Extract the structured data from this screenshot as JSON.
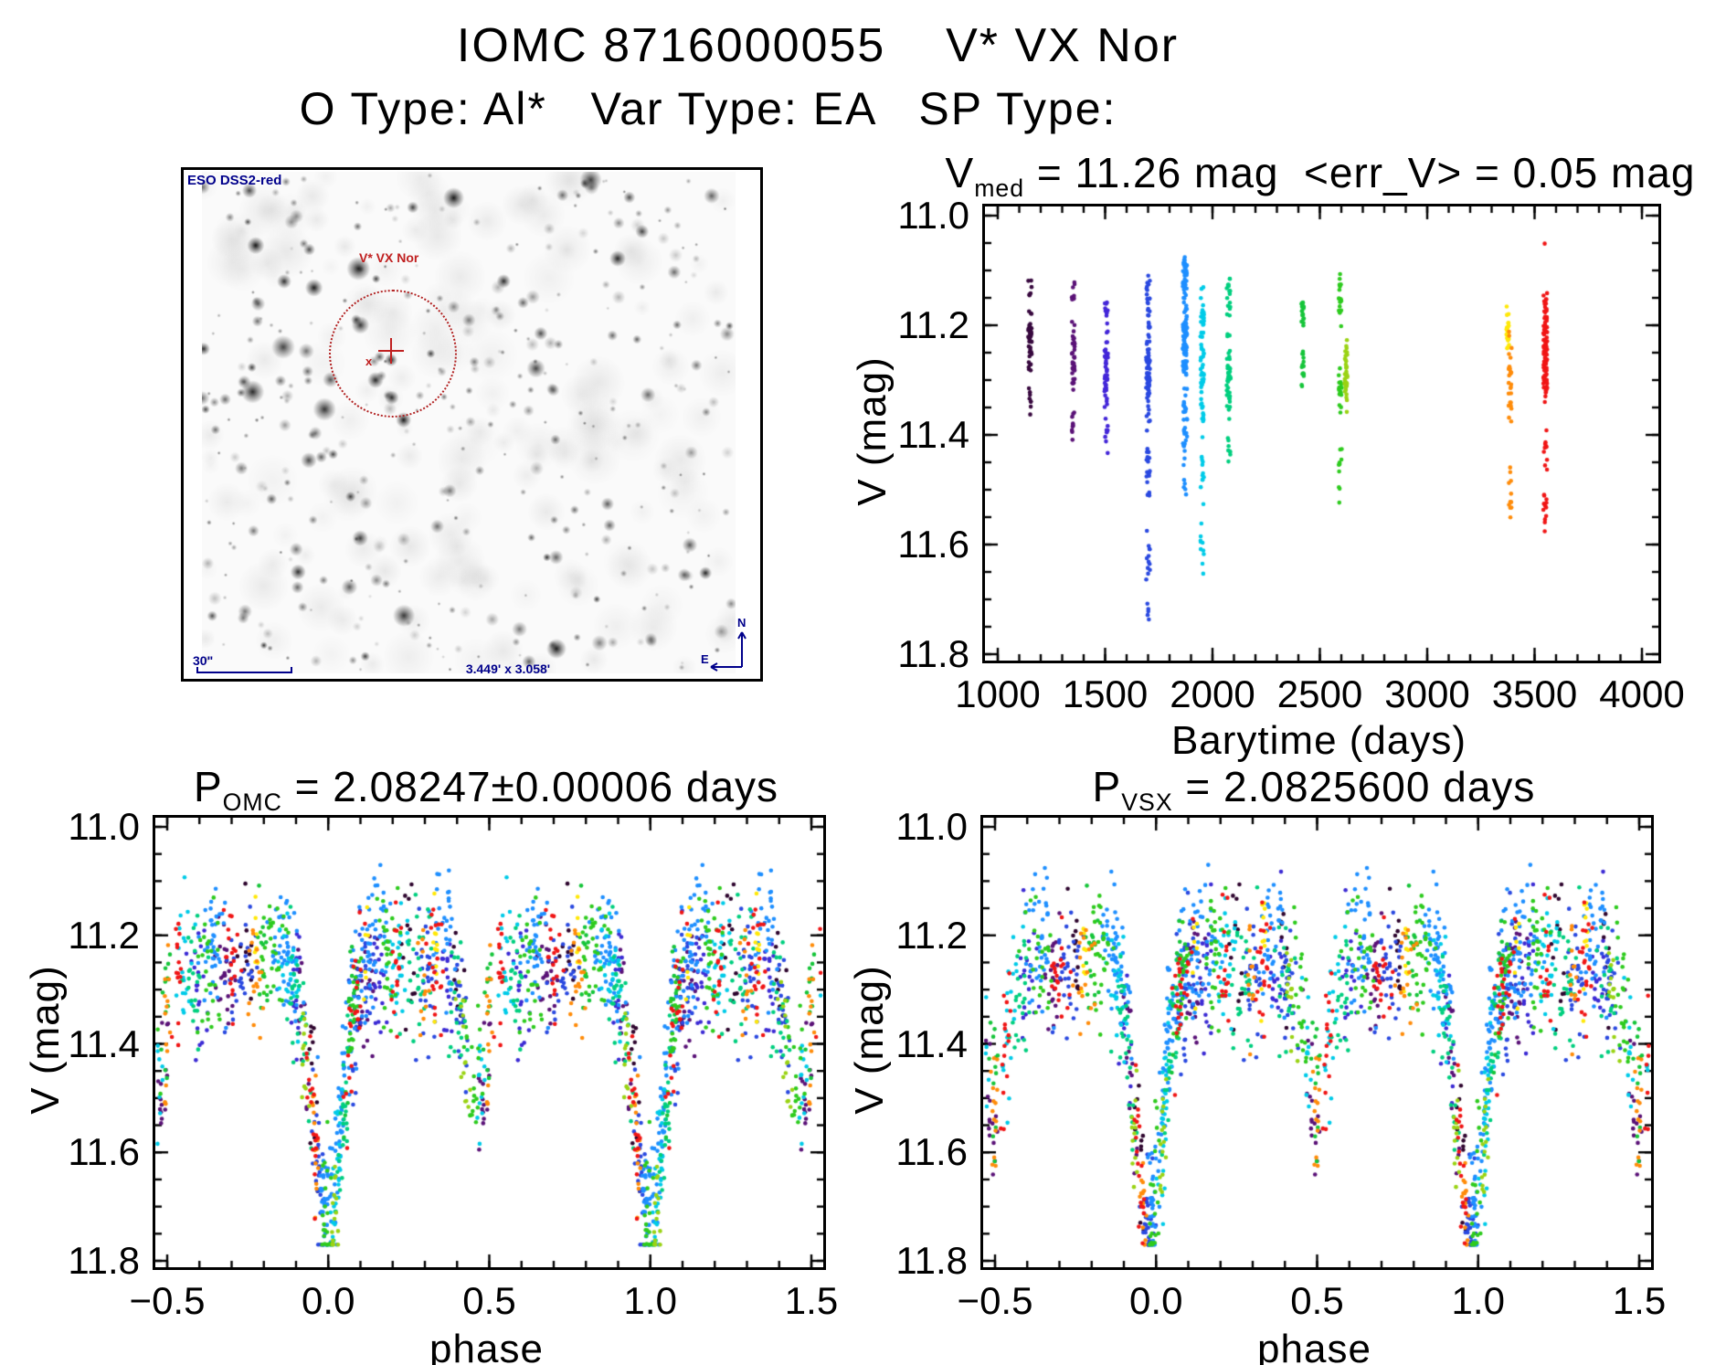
{
  "header": {
    "title": "IOMC 8716000055    V* VX Nor",
    "subtitle": "O Type: Al*   Var Type: EA   SP Type:"
  },
  "finder": {
    "survey_label": "ESO DSS2-red",
    "target_label": "V* VX Nor",
    "target_marker": "x",
    "scale_bar_label": "30\"",
    "fov_label": "3.449' x 3.058'",
    "compass_n": "N",
    "compass_e": "E",
    "annotation_color": "#00008b",
    "target_color": "#c02020"
  },
  "colors": {
    "axis": "#000000",
    "background": "#ffffff"
  },
  "chart_data": [
    {
      "id": "barytime",
      "dom": "chart-barytime",
      "type": "scatter",
      "title_base": "V",
      "title_sub": "med",
      "title_rest": " = 11.26 mag  <err_V> = 0.05 mag",
      "xlabel": "Barytime (days)",
      "ylabel": "V (mag)",
      "xlim": [
        1000,
        4000
      ],
      "ylim": [
        11.0,
        11.8
      ],
      "y_axis_inverted": true,
      "xticks": [
        [
          1000,
          "1000"
        ],
        [
          1500,
          "1500"
        ],
        [
          2000,
          "2000"
        ],
        [
          2500,
          "2500"
        ],
        [
          3000,
          "3000"
        ],
        [
          3500,
          "3500"
        ],
        [
          4000,
          "4000"
        ]
      ],
      "yticks": [
        [
          11.0,
          "11.0"
        ],
        [
          11.2,
          "11.2"
        ],
        [
          11.4,
          "11.4"
        ],
        [
          11.6,
          "11.6"
        ],
        [
          11.8,
          "11.8"
        ]
      ],
      "x_minor": 100,
      "y_minor": 0.05,
      "pads": [
        14,
        18,
        10,
        7
      ],
      "clusters": [
        {
          "x": 1150,
          "j": 8,
          "color": "#38093f",
          "bands": [
            [
              11.1,
              11.16,
              6
            ],
            [
              11.16,
              11.3,
              40
            ],
            [
              11.3,
              11.38,
              8
            ]
          ]
        },
        {
          "x": 1352,
          "j": 7,
          "color": "#5a1277",
          "bands": [
            [
              11.1,
              11.18,
              8
            ],
            [
              11.18,
              11.33,
              34
            ],
            [
              11.33,
              11.43,
              10
            ]
          ]
        },
        {
          "x": 1505,
          "j": 8,
          "color": "#4326d8",
          "bands": [
            [
              11.13,
              11.22,
              12
            ],
            [
              11.2,
              11.36,
              45
            ],
            [
              11.36,
              11.45,
              8
            ]
          ]
        },
        {
          "x": 1700,
          "j": 9,
          "color": "#2a49e0",
          "bands": [
            [
              11.1,
              11.24,
              25
            ],
            [
              11.22,
              11.4,
              55
            ],
            [
              11.4,
              11.56,
              18
            ],
            [
              11.56,
              11.68,
              12
            ],
            [
              11.68,
              11.76,
              5
            ]
          ]
        },
        {
          "x": 1872,
          "j": 10,
          "color": "#1e8fff",
          "bands": [
            [
              11.07,
              11.18,
              35
            ],
            [
              11.16,
              11.3,
              80
            ],
            [
              11.3,
              11.45,
              30
            ],
            [
              11.45,
              11.53,
              6
            ]
          ]
        },
        {
          "x": 1952,
          "j": 8,
          "color": "#00cbe8",
          "bands": [
            [
              11.12,
              11.24,
              22
            ],
            [
              11.22,
              11.4,
              40
            ],
            [
              11.4,
              11.55,
              12
            ],
            [
              11.55,
              11.66,
              10
            ]
          ]
        },
        {
          "x": 2075,
          "j": 9,
          "color": "#00cf7f",
          "bands": [
            [
              11.1,
              11.2,
              18
            ],
            [
              11.2,
              11.38,
              45
            ],
            [
              11.38,
              11.46,
              8
            ]
          ]
        },
        {
          "x": 2420,
          "j": 6,
          "color": "#16c53a",
          "bands": [
            [
              11.15,
              11.22,
              18
            ],
            [
              11.22,
              11.33,
              14
            ]
          ]
        },
        {
          "x": 2595,
          "j": 7,
          "color": "#2ecb1e",
          "bands": [
            [
              11.08,
              11.22,
              20
            ],
            [
              11.22,
              11.4,
              18
            ],
            [
              11.4,
              11.56,
              10
            ]
          ]
        },
        {
          "x": 2622,
          "j": 6,
          "color": "#9ad314",
          "bands": [
            [
              11.22,
              11.36,
              40
            ]
          ]
        },
        {
          "x": 3375,
          "j": 6,
          "color": "#ffe808",
          "bands": [
            [
              11.16,
              11.27,
              22
            ]
          ]
        },
        {
          "x": 3386,
          "j": 7,
          "color": "#ff8c0a",
          "bands": [
            [
              11.2,
              11.4,
              26
            ],
            [
              11.44,
              11.58,
              12
            ]
          ]
        },
        {
          "x": 3550,
          "j": 9,
          "color": "#f01515",
          "bands": [
            [
              11.04,
              11.06,
              1
            ],
            [
              11.13,
              11.22,
              25
            ],
            [
              11.18,
              11.35,
              70
            ],
            [
              11.38,
              11.48,
              10
            ],
            [
              11.48,
              11.59,
              12
            ]
          ]
        }
      ]
    },
    {
      "id": "phase_omc",
      "dom": "chart-omc",
      "type": "scatter",
      "title_base": "P",
      "title_sub": "OMC",
      "title_rest": " = 2.08247±0.00006 days",
      "xlabel": "phase",
      "ylabel": "V (mag)",
      "xlim": [
        -0.5,
        1.5
      ],
      "ylim": [
        11.0,
        11.8
      ],
      "y_axis_inverted": true,
      "xticks": [
        [
          -0.5,
          "−0.5"
        ],
        [
          0,
          "0.0"
        ],
        [
          0.5,
          "0.5"
        ],
        [
          1,
          "1.0"
        ],
        [
          1.5,
          "1.5"
        ]
      ],
      "yticks": [
        [
          11.0,
          "11.0"
        ],
        [
          11.2,
          "11.2"
        ],
        [
          11.4,
          "11.4"
        ],
        [
          11.6,
          "11.6"
        ],
        [
          11.8,
          "11.8"
        ]
      ],
      "x_minor": 0.1,
      "y_minor": 0.05,
      "pads": [
        13,
        13,
        10,
        7
      ],
      "model": {
        "base": 11.26,
        "sd": 0.062,
        "bright_clip": 11.07,
        "faint_clip": 11.43,
        "primary": {
          "c": 0.0,
          "depth": 0.48,
          "w": 0.042
        },
        "secondary": {
          "c": 0.46,
          "depth": 0.27,
          "w": 0.03
        }
      },
      "epochs": [
        {
          "color": "#2e052e",
          "dm": -0.03,
          "clumps": [
            [
              0.25,
              12,
              0.012
            ],
            [
              0.4,
              8,
              0.01
            ],
            [
              0.75,
              12,
              0.012
            ],
            [
              0.955,
              10,
              0.008
            ]
          ]
        },
        {
          "color": "#5a1277",
          "dm": 0.02,
          "clumps": [
            [
              0.12,
              22,
              0.015
            ],
            [
              0.48,
              16,
              0.012
            ],
            [
              0.68,
              22,
              0.015
            ],
            [
              0.92,
              14,
              0.01
            ]
          ]
        },
        {
          "color": "#3c2bd4",
          "dm": 0.02,
          "clumps": [
            [
              0.155,
              20,
              0.012
            ],
            [
              0.37,
              16,
              0.012
            ],
            [
              0.6,
              20,
              0.015
            ],
            [
              0.9,
              16,
              0.012
            ]
          ]
        },
        {
          "color": "#2a49e0",
          "dm": 0.02,
          "clumps": [
            [
              0.1,
              35,
              0.02
            ],
            [
              0.3,
              25,
              0.015
            ],
            [
              0.41,
              25,
              0.015
            ],
            [
              0.73,
              30,
              0.02
            ],
            [
              0.975,
              30,
              0.01
            ]
          ]
        },
        {
          "color": "#1e8fff",
          "dm": -0.04,
          "clumps": [
            [
              0.03,
              55,
              0.02
            ],
            [
              0.08,
              20,
              0.015
            ],
            [
              0.14,
              45,
              0.025
            ],
            [
              0.36,
              35,
              0.02
            ],
            [
              0.64,
              40,
              0.02
            ],
            [
              0.87,
              50,
              0.025
            ],
            [
              0.985,
              25,
              0.008
            ]
          ]
        },
        {
          "color": "#00cbe8",
          "dm": 0.0,
          "clumps": [
            [
              0.025,
              28,
              0.01
            ],
            [
              0.22,
              30,
              0.02
            ],
            [
              0.47,
              12,
              0.008
            ],
            [
              0.55,
              20,
              0.015
            ],
            [
              0.88,
              25,
              0.02
            ]
          ]
        },
        {
          "color": "#00cf7f",
          "dm": 0.03,
          "clumps": [
            [
              0.05,
              25,
              0.015
            ],
            [
              0.28,
              28,
              0.02
            ],
            [
              0.4,
              18,
              0.015
            ],
            [
              0.58,
              22,
              0.015
            ],
            [
              0.91,
              28,
              0.02
            ]
          ]
        },
        {
          "color": "#16c53a",
          "dm": -0.04,
          "clumps": [
            [
              0.07,
              15,
              0.01
            ],
            [
              0.5,
              12,
              0.008
            ],
            [
              0.8,
              15,
              0.012
            ]
          ]
        },
        {
          "color": "#2ecb1e",
          "dm": -0.02,
          "clumps": [
            [
              0.08,
              20,
              0.015
            ],
            [
              0.18,
              30,
              0.02
            ],
            [
              0.45,
              22,
              0.015
            ],
            [
              0.63,
              25,
              0.02
            ],
            [
              0.83,
              30,
              0.02
            ],
            [
              0.99,
              20,
              0.01
            ]
          ]
        },
        {
          "color": "#9ad314",
          "dm": 0.04,
          "clumps": [
            [
              0.02,
              15,
              0.006
            ],
            [
              0.42,
              14,
              0.01
            ],
            [
              0.93,
              12,
              0.008
            ]
          ]
        },
        {
          "color": "#ffe808",
          "dm": -0.05,
          "clumps": [
            [
              0.12,
              6,
              0.005
            ],
            [
              0.335,
              10,
              0.006
            ],
            [
              0.78,
              8,
              0.006
            ]
          ]
        },
        {
          "color": "#ff8c0a",
          "dm": 0.01,
          "clumps": [
            [
              0.3,
              12,
              0.01
            ],
            [
              0.5,
              14,
              0.006
            ],
            [
              0.78,
              18,
              0.015
            ],
            [
              0.96,
              15,
              0.008
            ]
          ]
        },
        {
          "color": "#f01515",
          "dm": 0.0,
          "clumps": [
            [
              0.08,
              25,
              0.015
            ],
            [
              0.21,
              15,
              0.01
            ],
            [
              0.33,
              20,
              0.015
            ],
            [
              0.53,
              15,
              0.01
            ],
            [
              0.7,
              20,
              0.015
            ],
            [
              0.95,
              18,
              0.008
            ]
          ]
        }
      ]
    },
    {
      "id": "phase_vsx",
      "dom": "chart-vsx",
      "type": "scatter",
      "title_base": "P",
      "title_sub": "VSX",
      "title_rest": " = 2.0825600 days",
      "xlabel": "phase",
      "ylabel": "V (mag)",
      "xlim": [
        -0.5,
        1.5
      ],
      "ylim": [
        11.0,
        11.8
      ],
      "y_axis_inverted": true,
      "xticks": [
        [
          -0.5,
          "−0.5"
        ],
        [
          0,
          "0.0"
        ],
        [
          0.5,
          "0.5"
        ],
        [
          1,
          "1.0"
        ],
        [
          1.5,
          "1.5"
        ]
      ],
      "yticks": [
        [
          11.0,
          "11.0"
        ],
        [
          11.2,
          "11.2"
        ],
        [
          11.4,
          "11.4"
        ],
        [
          11.6,
          "11.6"
        ],
        [
          11.8,
          "11.8"
        ]
      ],
      "x_minor": 0.1,
      "y_minor": 0.05,
      "pads": [
        13,
        13,
        10,
        7
      ],
      "model": {
        "base": 11.26,
        "sd": 0.062,
        "bright_clip": 11.07,
        "faint_clip": 11.43,
        "primary": {
          "c": -0.02,
          "depth": 0.48,
          "w": 0.042
        },
        "secondary": {
          "c": 0.5,
          "depth": 0.27,
          "w": 0.03
        }
      },
      "epochs_from": "phase_omc"
    }
  ]
}
